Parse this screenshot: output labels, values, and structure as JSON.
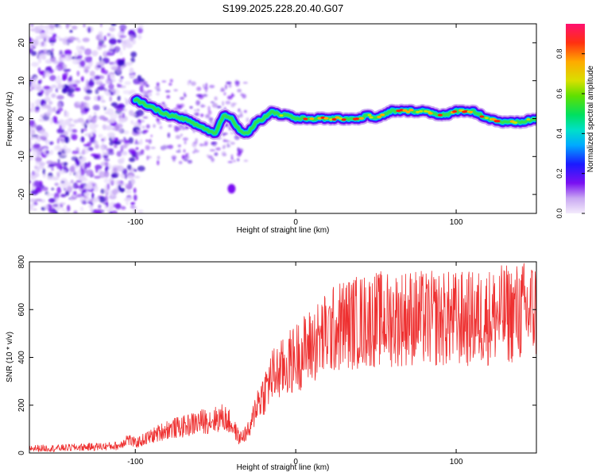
{
  "title": "S199.2025.228.20.40.G07",
  "chart_data": [
    {
      "type": "heatmap",
      "xlabel": "Height of straight line (km)",
      "ylabel": "Frequency (Hz)",
      "xlim": [
        -166,
        150
      ],
      "ylim": [
        -25,
        25
      ],
      "xticks": [
        -100,
        0,
        100
      ],
      "yticks": [
        -20,
        -10,
        0,
        10,
        20
      ],
      "ridge": {
        "description_points_x": [
          -100,
          -90,
          -80,
          -70,
          -60,
          -50,
          -45,
          -40,
          -35,
          -30,
          -25,
          -20,
          -15,
          -10,
          -5,
          0,
          10,
          20,
          30,
          40,
          45,
          50,
          55,
          60,
          70,
          80,
          90,
          95,
          100,
          110,
          115,
          120,
          130,
          140,
          150
        ],
        "description_points_y": [
          5,
          3,
          1,
          0,
          -2,
          -4,
          1,
          0,
          -3,
          -4,
          -1,
          0,
          2,
          1,
          1,
          0,
          0,
          0,
          0,
          0,
          1,
          0,
          1,
          2,
          2,
          2,
          1,
          1,
          2,
          2,
          1,
          0,
          -1,
          -1,
          0
        ]
      },
      "colorbar": {
        "label": "Normalized spectral amplitude",
        "range": [
          0,
          0.95
        ],
        "ticks": [
          0.0,
          0.2,
          0.4,
          0.6,
          0.8
        ]
      }
    },
    {
      "type": "line",
      "xlabel": "Height of straight line (km)",
      "ylabel": "SNR (10 * v/v)",
      "xlim": [
        -166,
        150
      ],
      "ylim": [
        0,
        800
      ],
      "xticks": [
        -100,
        0,
        100
      ],
      "yticks": [
        0,
        200,
        400,
        600,
        800
      ],
      "series": [
        {
          "name": "SNR",
          "color": "#ee3030",
          "x": [
            -166,
            -150,
            -130,
            -110,
            -105,
            -100,
            -90,
            -80,
            -70,
            -60,
            -50,
            -45,
            -40,
            -35,
            -28,
            -25,
            -20,
            -15,
            -10,
            -5,
            0,
            10,
            20,
            30,
            40,
            50,
            60,
            70,
            80,
            90,
            100,
            110,
            120,
            130,
            140,
            150
          ],
          "y": [
            20,
            20,
            25,
            30,
            60,
            40,
            70,
            100,
            110,
            130,
            140,
            150,
            120,
            60,
            100,
            200,
            250,
            320,
            340,
            370,
            400,
            450,
            500,
            540,
            550,
            560,
            560,
            570,
            560,
            560,
            560,
            560,
            570,
            580,
            590,
            600
          ]
        }
      ]
    }
  ]
}
